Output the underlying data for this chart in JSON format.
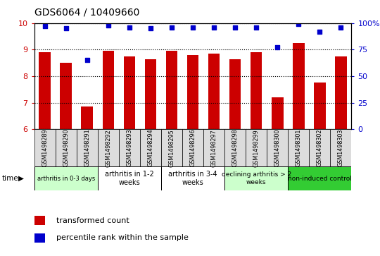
{
  "title": "GDS6064 / 10409660",
  "samples": [
    "GSM1498289",
    "GSM1498290",
    "GSM1498291",
    "GSM1498292",
    "GSM1498293",
    "GSM1498294",
    "GSM1498295",
    "GSM1498296",
    "GSM1498297",
    "GSM1498298",
    "GSM1498299",
    "GSM1498300",
    "GSM1498301",
    "GSM1498302",
    "GSM1498303"
  ],
  "bar_values": [
    8.9,
    8.5,
    6.85,
    8.95,
    8.75,
    8.65,
    8.95,
    8.8,
    8.85,
    8.65,
    8.9,
    7.2,
    9.25,
    7.75,
    8.75
  ],
  "dot_values": [
    97,
    95,
    65,
    98,
    96,
    95,
    96,
    96,
    96,
    96,
    96,
    77,
    99,
    92,
    96
  ],
  "ylim_left": [
    6,
    10
  ],
  "ylim_right": [
    0,
    100
  ],
  "yticks_left": [
    6,
    7,
    8,
    9,
    10
  ],
  "yticks_right": [
    0,
    25,
    50,
    75,
    100
  ],
  "ytick_labels_right": [
    "0",
    "25",
    "50",
    "75",
    "100%"
  ],
  "bar_color": "#CC0000",
  "dot_color": "#0000CC",
  "bar_width": 0.55,
  "groups": [
    {
      "label": "arthritis in 0-3 days",
      "start": 0,
      "end": 3,
      "color": "#ccffcc",
      "fontsize": 6.0
    },
    {
      "label": "arthritis in 1-2\nweeks",
      "start": 3,
      "end": 6,
      "color": "#ffffff",
      "fontsize": 7.0
    },
    {
      "label": "arthritis in 3-4\nweeks",
      "start": 6,
      "end": 9,
      "color": "#ffffff",
      "fontsize": 7.0
    },
    {
      "label": "declining arthritis > 2\nweeks",
      "start": 9,
      "end": 12,
      "color": "#ccffcc",
      "fontsize": 6.5
    },
    {
      "label": "non-induced control",
      "start": 12,
      "end": 15,
      "color": "#33cc33",
      "fontsize": 6.5
    }
  ],
  "legend_items": [
    {
      "label": "transformed count",
      "color": "#CC0000"
    },
    {
      "label": "percentile rank within the sample",
      "color": "#0000CC"
    }
  ]
}
